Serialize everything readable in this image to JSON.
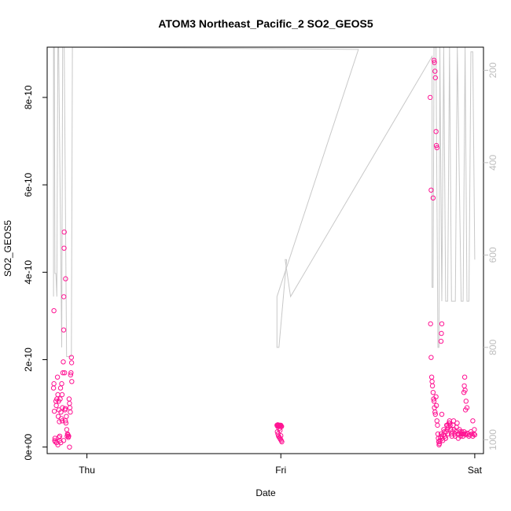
{
  "chart_data": {
    "type": "scatter",
    "title": "ATOM3 Northeast_Pacific_2 SO2_GEOS5",
    "xlabel": "Date",
    "ylabel": "SO2_GEOS5",
    "x_ticks": [
      {
        "label": "Thu",
        "value": 0
      },
      {
        "label": "Fri",
        "value": 1
      },
      {
        "label": "Sat",
        "value": 2
      }
    ],
    "xlim": [
      -0.205,
      2.045
    ],
    "ylim": [
      -1.5e-11,
      9.15e-10
    ],
    "y_ticks": [
      {
        "label": "0e+00",
        "value": 0
      },
      {
        "label": "2e-10",
        "value": 2e-10
      },
      {
        "label": "4e-10",
        "value": 4e-10
      },
      {
        "label": "6e-10",
        "value": 6e-10
      },
      {
        "label": "8e-10",
        "value": 8e-10
      }
    ],
    "y2_lim": [
      1030,
      150
    ],
    "y2_ticks": [
      {
        "label": "200",
        "value": 200
      },
      {
        "label": "400",
        "value": 400
      },
      {
        "label": "600",
        "value": 600
      },
      {
        "label": "800",
        "value": 800
      },
      {
        "label": "1000",
        "value": 1000
      }
    ],
    "colors": {
      "points": "#ff1493",
      "pressure_line": "#c8c8c8",
      "right_axis": "#bdbdbd"
    },
    "series": [
      {
        "type": "scatter",
        "points": [
          [
            -0.17,
            3.12e-10
          ],
          [
            -0.17,
            1.45e-10
          ],
          [
            -0.168,
            8.2e-11
          ],
          [
            -0.165,
            2e-11
          ],
          [
            -0.163,
            1.2e-11
          ],
          [
            -0.16,
            1.05e-10
          ],
          [
            -0.158,
            9.5e-11
          ],
          [
            -0.155,
            1.1e-10
          ],
          [
            -0.152,
            1.6e-10
          ],
          [
            -0.15,
            1.2e-10
          ],
          [
            -0.148,
            7e-11
          ],
          [
            -0.146,
            1.05e-10
          ],
          [
            -0.144,
            8.5e-11
          ],
          [
            -0.142,
            5.8e-11
          ],
          [
            -0.14,
            2.5e-11
          ],
          [
            -0.138,
            1.1e-10
          ],
          [
            -0.136,
            1.35e-10
          ],
          [
            -0.134,
            8e-11
          ],
          [
            -0.132,
            6.5e-11
          ],
          [
            -0.13,
            1.45e-10
          ],
          [
            -0.128,
            1.2e-10
          ],
          [
            -0.126,
            9e-11
          ],
          [
            -0.124,
            1.7e-10
          ],
          [
            -0.122,
            1.95e-10
          ],
          [
            -0.12,
            2.68e-10
          ],
          [
            -0.119,
            3.44e-10
          ],
          [
            -0.118,
            4.55e-10
          ],
          [
            -0.117,
            4.92e-10
          ],
          [
            -0.115,
            1.7e-10
          ],
          [
            -0.113,
            8.5e-11
          ],
          [
            -0.111,
            6e-11
          ],
          [
            -0.11,
            3.85e-10
          ],
          [
            -0.108,
            5.5e-11
          ],
          [
            -0.106,
            7e-11
          ],
          [
            -0.104,
            4e-11
          ],
          [
            -0.102,
            2.5e-11
          ],
          [
            -0.1,
            3e-11
          ],
          [
            -0.098,
            2.8e-11
          ],
          [
            -0.096,
            2.2e-11
          ],
          [
            -0.094,
            2.5e-11
          ],
          [
            -0.092,
            1.1e-10
          ],
          [
            -0.09,
            1e-10
          ],
          [
            -0.088,
            9e-11
          ],
          [
            -0.086,
            8e-11
          ],
          [
            -0.084,
            1.65e-10
          ],
          [
            -0.082,
            1.7e-10
          ],
          [
            -0.08,
            2.05e-10
          ],
          [
            -0.079,
            1.93e-10
          ],
          [
            -0.078,
            1.5e-10
          ],
          [
            -0.09,
            0.0
          ],
          [
            -0.172,
            1.35e-10
          ],
          [
            -0.166,
            1.5e-11
          ],
          [
            -0.156,
            1e-11
          ],
          [
            -0.15,
            5e-12
          ],
          [
            -0.145,
            2.2e-11
          ],
          [
            -0.14,
            1.5e-11
          ],
          [
            -0.135,
            1e-11
          ],
          [
            -0.128,
            6e-11
          ],
          [
            -0.12,
            1.5e-11
          ],
          [
            -0.112,
            8.8e-11
          ]
        ]
      },
      {
        "type": "scatter",
        "points": [
          [
            0.98,
            5e-11
          ],
          [
            0.982,
            4.8e-11
          ],
          [
            0.984,
            5.1e-11
          ],
          [
            0.986,
            4.9e-11
          ],
          [
            0.988,
            5e-11
          ],
          [
            0.99,
            4.7e-11
          ],
          [
            0.992,
            5e-11
          ],
          [
            0.994,
            4.8e-11
          ],
          [
            0.996,
            5e-11
          ],
          [
            0.998,
            4.9e-11
          ],
          [
            1.0,
            5e-11
          ],
          [
            1.002,
            4.8e-11
          ],
          [
            1.004,
            4.7e-11
          ],
          [
            0.982,
            3.5e-11
          ],
          [
            0.985,
            3e-11
          ],
          [
            0.988,
            2.5e-11
          ],
          [
            0.992,
            2.2e-11
          ],
          [
            0.995,
            2e-11
          ],
          [
            0.998,
            1.8e-11
          ],
          [
            1.002,
            1.5e-11
          ],
          [
            1.005,
            1.2e-11
          ],
          [
            0.99,
            4.2e-11
          ],
          [
            0.996,
            3.8e-11
          ],
          [
            1.0,
            2.6e-11
          ]
        ]
      },
      {
        "type": "scatter",
        "points": [
          [
            1.77,
            8e-10
          ],
          [
            1.775,
            5.88e-10
          ],
          [
            1.785,
            5.7e-10
          ],
          [
            1.79,
            8.85e-10
          ],
          [
            1.792,
            8.8e-10
          ],
          [
            1.795,
            8.6e-10
          ],
          [
            1.797,
            8.45e-10
          ],
          [
            1.8,
            7.22e-10
          ],
          [
            1.802,
            6.9e-10
          ],
          [
            1.805,
            6.85e-10
          ],
          [
            1.772,
            2.82e-10
          ],
          [
            1.775,
            2.05e-10
          ],
          [
            1.778,
            1.6e-10
          ],
          [
            1.78,
            1.5e-10
          ],
          [
            1.782,
            1.4e-10
          ],
          [
            1.785,
            1.25e-10
          ],
          [
            1.788,
            1.1e-10
          ],
          [
            1.79,
            1.05e-10
          ],
          [
            1.792,
            9e-11
          ],
          [
            1.795,
            8e-11
          ],
          [
            1.797,
            7.5e-11
          ],
          [
            1.8,
            1.15e-10
          ],
          [
            1.802,
            9.5e-11
          ],
          [
            1.805,
            6e-11
          ],
          [
            1.808,
            5e-11
          ],
          [
            1.81,
            3e-11
          ],
          [
            1.812,
            2e-11
          ],
          [
            1.814,
            1.2e-11
          ],
          [
            1.816,
            5e-12
          ],
          [
            1.818,
            8e-12
          ],
          [
            1.82,
            1.5e-11
          ],
          [
            1.823,
            2.2e-11
          ],
          [
            1.826,
            3e-11
          ],
          [
            1.829,
            2.5e-11
          ],
          [
            1.832,
            2e-11
          ],
          [
            1.835,
            1.5e-11
          ],
          [
            1.838,
            2.8e-11
          ],
          [
            1.84,
            4e-11
          ],
          [
            1.843,
            3.5e-11
          ],
          [
            1.846,
            2.5e-11
          ],
          [
            1.849,
            2e-11
          ],
          [
            1.852,
            3.5e-11
          ],
          [
            1.855,
            5e-11
          ],
          [
            1.858,
            4e-11
          ],
          [
            1.861,
            3e-11
          ],
          [
            1.864,
            4.5e-11
          ],
          [
            1.867,
            5.5e-11
          ],
          [
            1.87,
            6e-11
          ],
          [
            1.873,
            5e-11
          ],
          [
            1.876,
            4e-11
          ],
          [
            1.879,
            3e-11
          ],
          [
            1.882,
            2.5e-11
          ],
          [
            1.885,
            3.5e-11
          ],
          [
            1.888,
            5e-11
          ],
          [
            1.891,
            6e-11
          ],
          [
            1.894,
            4e-11
          ],
          [
            1.897,
            3e-11
          ],
          [
            1.9,
            2.5e-11
          ],
          [
            1.903,
            3.5e-11
          ],
          [
            1.906,
            4.5e-11
          ],
          [
            1.909,
            5.5e-11
          ],
          [
            1.912,
            3e-11
          ],
          [
            1.915,
            2e-11
          ],
          [
            1.918,
            3e-11
          ],
          [
            1.921,
            4e-11
          ],
          [
            1.924,
            3.5e-11
          ],
          [
            1.927,
            2.5e-11
          ],
          [
            1.93,
            3e-11
          ],
          [
            1.933,
            3.5e-11
          ],
          [
            1.936,
            3e-11
          ],
          [
            1.939,
            2.5e-11
          ],
          [
            1.942,
            3e-11
          ],
          [
            1.945,
            3.5e-11
          ],
          [
            1.95,
            3e-11
          ],
          [
            1.955,
            2.8e-11
          ],
          [
            1.96,
            3.2e-11
          ],
          [
            1.965,
            3e-11
          ],
          [
            1.97,
            2.5e-11
          ],
          [
            1.975,
            2.8e-11
          ],
          [
            1.98,
            3.5e-11
          ],
          [
            1.985,
            3e-11
          ],
          [
            1.99,
            2.5e-11
          ],
          [
            1.995,
            3e-11
          ],
          [
            2.0,
            2.8e-11
          ],
          [
            1.998,
            4e-11
          ],
          [
            1.99,
            6e-11
          ],
          [
            1.96,
            9e-11
          ],
          [
            1.955,
            1.05e-10
          ],
          [
            1.95,
            1.3e-10
          ],
          [
            1.948,
            1.6e-10
          ],
          [
            1.946,
            1.4e-10
          ],
          [
            1.944,
            1.25e-10
          ],
          [
            1.952,
            8.5e-11
          ],
          [
            1.83,
            2.82e-10
          ],
          [
            1.828,
            2.6e-10
          ],
          [
            1.826,
            2.42e-10
          ],
          [
            1.83,
            7.5e-11
          ],
          [
            1.86,
            5e-11
          ],
          [
            1.87,
            5.5e-11
          ],
          [
            1.85,
            2e-11
          ]
        ]
      },
      {
        "type": "line",
        "axis": "right",
        "points": [
          [
            -0.172,
            690
          ],
          [
            -0.172,
            150
          ],
          [
            -0.168,
            150
          ],
          [
            -0.165,
            640
          ],
          [
            -0.16,
            640
          ],
          [
            -0.155,
            690
          ],
          [
            -0.15,
            150
          ],
          [
            -0.146,
            150
          ],
          [
            -0.13,
            800
          ],
          [
            -0.125,
            150
          ],
          [
            -0.12,
            150
          ],
          [
            -0.117,
            150
          ],
          [
            -0.105,
            820
          ],
          [
            -0.095,
            820
          ],
          [
            -0.08,
            820
          ],
          [
            -0.075,
            150
          ],
          [
            1.4,
            155
          ],
          [
            0.98,
            690
          ],
          [
            0.98,
            800
          ],
          [
            0.99,
            800
          ],
          [
            1.03,
            610
          ],
          [
            1.022,
            610
          ],
          [
            1.05,
            690
          ],
          [
            1.78,
            170
          ],
          [
            1.78,
            670
          ],
          [
            1.785,
            670
          ],
          [
            1.79,
            150
          ],
          [
            1.8,
            150
          ],
          [
            1.81,
            800
          ],
          [
            1.815,
            800
          ],
          [
            1.82,
            150
          ],
          [
            1.83,
            700
          ],
          [
            1.84,
            150
          ],
          [
            1.85,
            700
          ],
          [
            1.86,
            700
          ],
          [
            1.87,
            150
          ],
          [
            1.88,
            700
          ],
          [
            1.9,
            700
          ],
          [
            1.91,
            150
          ],
          [
            1.93,
            700
          ],
          [
            1.94,
            700
          ],
          [
            1.95,
            150
          ],
          [
            1.96,
            700
          ],
          [
            1.97,
            700
          ],
          [
            1.98,
            160
          ],
          [
            1.99,
            160
          ],
          [
            2.0,
            610
          ]
        ]
      }
    ]
  }
}
